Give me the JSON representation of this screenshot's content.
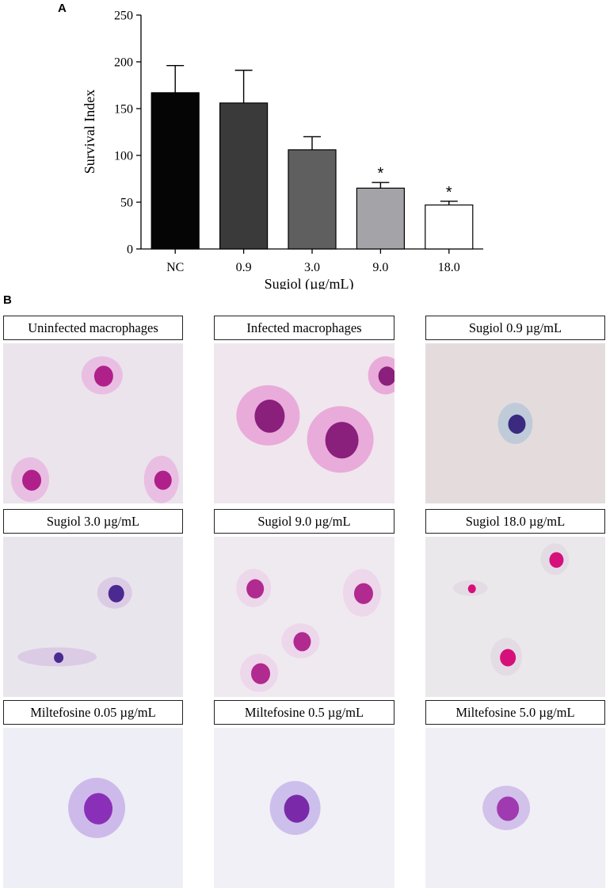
{
  "panel_a_label": "A",
  "panel_b_label": "B",
  "chart_data": {
    "type": "bar",
    "xlabel": "Sugiol (µg/mL)",
    "ylabel": "Survival Index",
    "ylim": [
      0,
      250
    ],
    "yticks": [
      0,
      50,
      100,
      150,
      200,
      250
    ],
    "grid": false,
    "categories": [
      "NC",
      "0.9",
      "3.0",
      "9.0",
      "18.0"
    ],
    "values": [
      167,
      156,
      106,
      65,
      47
    ],
    "errors": [
      29,
      35,
      14,
      6,
      4
    ],
    "significance": [
      "",
      "",
      "",
      "*",
      "*"
    ],
    "bar_colors": [
      "#050505",
      "#3a3a3a",
      "#5f5f5f",
      "#a4a4a8",
      "#ffffff"
    ]
  },
  "micrographs": [
    {
      "caption": "Uninfected macrophages",
      "bg": "#ebe4ec",
      "nucleus": "#b0208a",
      "cyto": "#e7b8e0",
      "icon": "macrophage-image-icon"
    },
    {
      "caption": "Infected macrophages",
      "bg": "#f0e6ee",
      "nucleus": "#8a1f7c",
      "cyto": "#e8a0d6",
      "icon": "infected-macrophage-image-icon"
    },
    {
      "caption": "Sugiol 0.9 µg/mL",
      "bg": "#e4dcdc",
      "nucleus": "#3a2a80",
      "cyto": "#b8c8d8",
      "icon": "treated-macrophage-image-icon"
    },
    {
      "caption": "Sugiol 3.0 µg/mL",
      "bg": "#e8e6ec",
      "nucleus": "#4a2a90",
      "cyto": "#d9c6e3",
      "icon": "treated-macrophage-image-icon"
    },
    {
      "caption": "Sugiol 9.0 µg/mL",
      "bg": "#efeaef",
      "nucleus": "#b02a90",
      "cyto": "#ecd3ea",
      "icon": "treated-macrophage-image-icon"
    },
    {
      "caption": "Sugiol 18.0 µg/mL",
      "bg": "#ebe8ec",
      "nucleus": "#d6107a",
      "cyto": "#e3d9e4",
      "icon": "treated-macrophage-image-icon"
    },
    {
      "caption": "Miltefosine 0.05 µg/mL",
      "bg": "#eeeef6",
      "nucleus": "#8a30b8",
      "cyto": "#c8b0e8",
      "icon": "treated-macrophage-image-icon"
    },
    {
      "caption": "Miltefosine 0.5 µg/mL",
      "bg": "#f1f0f6",
      "nucleus": "#7a2aa8",
      "cyto": "#c7b6ea",
      "icon": "treated-macrophage-image-icon"
    },
    {
      "caption": "Miltefosine 5.0 µg/mL",
      "bg": "#f0eff5",
      "nucleus": "#a03ab0",
      "cyto": "#cdb9e8",
      "icon": "treated-macrophage-image-icon"
    }
  ]
}
